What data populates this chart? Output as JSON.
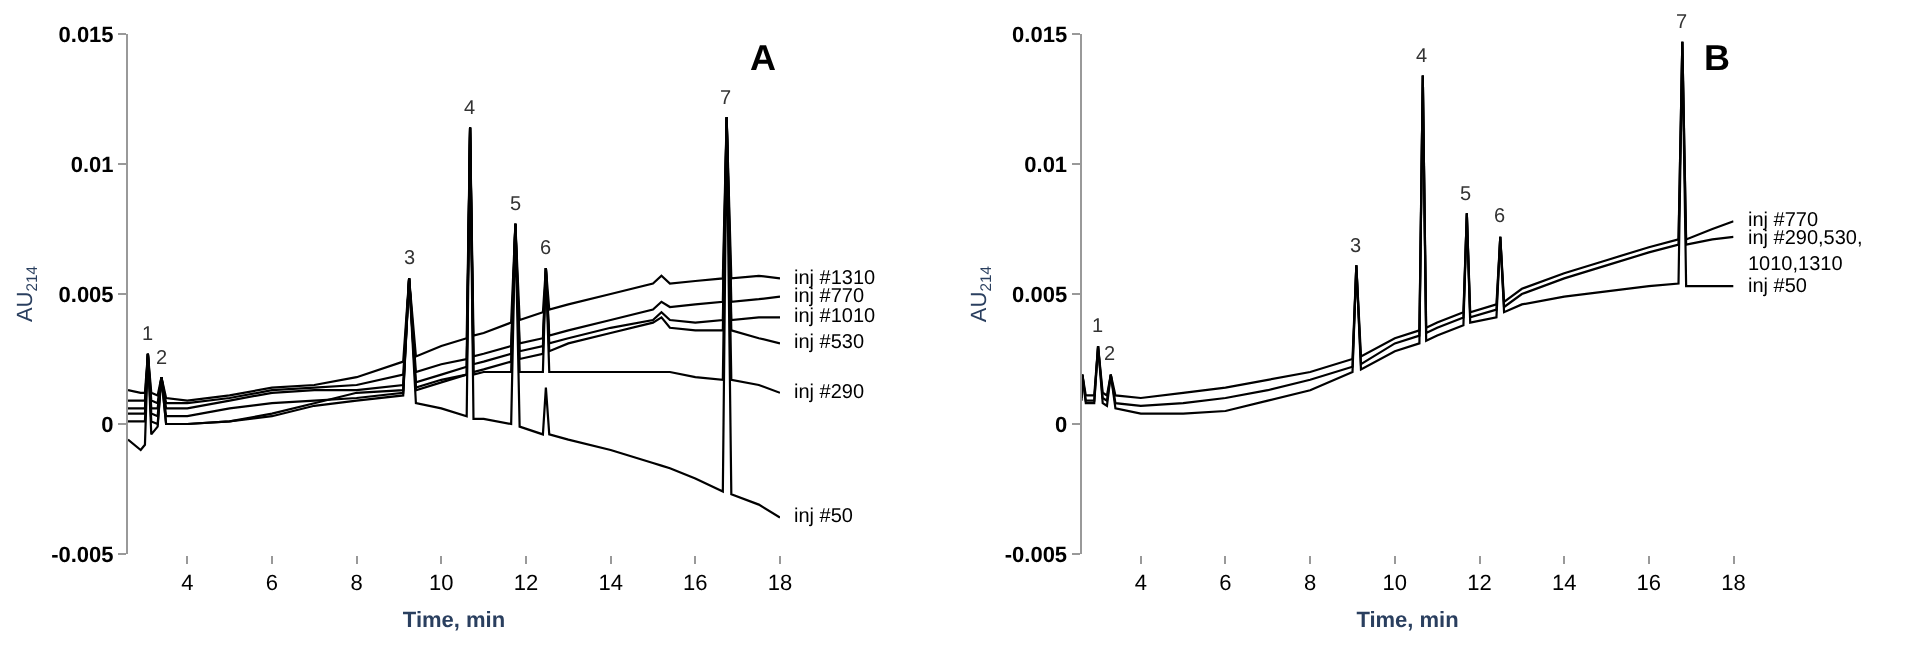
{
  "chart_data": [
    {
      "type": "line",
      "title": "A",
      "xlabel": "Time, min",
      "ylabel": "AU$_{214}$",
      "xlim": [
        2.6,
        18
      ],
      "ylim": [
        -0.005,
        0.015
      ],
      "xticks": [
        4,
        6,
        8,
        10,
        12,
        14,
        16,
        18
      ],
      "yticks": [
        -0.005,
        0,
        0.005,
        0.01,
        0.015
      ],
      "x": [
        2.6,
        2.9,
        3.0,
        3.07,
        3.15,
        3.3,
        3.39,
        3.5,
        4,
        5,
        6,
        7,
        8,
        9.1,
        9.24,
        9.4,
        10,
        10.6,
        10.68,
        10.76,
        11,
        11.65,
        11.75,
        11.85,
        12.4,
        12.47,
        12.55,
        13,
        14,
        15,
        15.2,
        15.4,
        16,
        16.65,
        16.74,
        16.85,
        17.5,
        18
      ],
      "series": [
        {
          "name": "inj #1310",
          "color": "#000000",
          "values": [
            0.0013,
            0.0012,
            0.0012,
            0.0027,
            0.0012,
            0.0011,
            0.0018,
            0.001,
            0.0009,
            0.0011,
            0.0014,
            0.0015,
            0.0018,
            0.0024,
            0.0056,
            0.0026,
            0.003,
            0.0033,
            0.0114,
            0.0034,
            0.0035,
            0.0039,
            0.0077,
            0.004,
            0.0043,
            0.006,
            0.0044,
            0.0046,
            0.005,
            0.0054,
            0.0057,
            0.0054,
            0.0055,
            0.0056,
            0.0118,
            0.0056,
            0.0057,
            0.0056
          ]
        },
        {
          "name": "inj #770",
          "color": "#000000",
          "values": [
            0.0009,
            0.0009,
            0.0009,
            0.0027,
            0.0009,
            0.0008,
            0.0018,
            0.0008,
            0.0008,
            0.001,
            0.0013,
            0.0014,
            0.0015,
            0.0019,
            0.0056,
            0.002,
            0.0023,
            0.0025,
            0.0114,
            0.0026,
            0.0027,
            0.003,
            0.0077,
            0.0031,
            0.0033,
            0.006,
            0.0034,
            0.0036,
            0.004,
            0.0044,
            0.0047,
            0.0045,
            0.0046,
            0.0047,
            0.0118,
            0.0047,
            0.0048,
            0.0049
          ]
        },
        {
          "name": "inj #1010",
          "color": "#000000",
          "values": [
            0.0006,
            0.0006,
            0.0006,
            0.0027,
            0.0006,
            0.0006,
            0.0018,
            0.0006,
            0.0006,
            0.0009,
            0.0012,
            0.0013,
            0.0013,
            0.0015,
            0.0056,
            0.0016,
            0.0019,
            0.0022,
            0.0114,
            0.0023,
            0.0024,
            0.0027,
            0.0077,
            0.0028,
            0.003,
            0.006,
            0.0031,
            0.0033,
            0.0037,
            0.004,
            0.0043,
            0.004,
            0.0039,
            0.004,
            0.0118,
            0.004,
            0.0041,
            0.0041
          ]
        },
        {
          "name": "inj #530",
          "color": "#000000",
          "values": [
            0.0004,
            0.0004,
            0.0004,
            0.0027,
            0.0004,
            0.0003,
            0.0018,
            0.0003,
            0.0003,
            0.0006,
            0.0008,
            0.0009,
            0.001,
            0.0012,
            0.0056,
            0.0013,
            0.0016,
            0.0019,
            0.0114,
            0.002,
            0.0021,
            0.0024,
            0.0077,
            0.0025,
            0.0027,
            0.006,
            0.0028,
            0.0031,
            0.0035,
            0.0039,
            0.0041,
            0.0037,
            0.0036,
            0.0036,
            0.0118,
            0.0036,
            0.0033,
            0.0031
          ]
        },
        {
          "name": "inj #290",
          "color": "#000000",
          "values": [
            0.0001,
            0.0001,
            0.0001,
            0.0027,
            0.0001,
            0.0,
            0.0018,
            0.0,
            0.0,
            0.0001,
            0.0004,
            0.0008,
            0.0012,
            0.0013,
            0.0056,
            0.0014,
            0.0017,
            0.0019,
            0.0114,
            0.0019,
            0.002,
            0.002,
            0.0077,
            0.002,
            0.002,
            0.006,
            0.002,
            0.002,
            0.002,
            0.002,
            0.002,
            0.002,
            0.0018,
            0.0017,
            0.0118,
            0.0017,
            0.0015,
            0.0012
          ]
        },
        {
          "name": "inj #50",
          "color": "#000000",
          "values": [
            -0.0006,
            -0.001,
            -0.0008,
            0.0027,
            -0.0004,
            -0.0001,
            0.0018,
            0.0,
            0.0,
            0.0001,
            0.0003,
            0.0007,
            0.0009,
            0.0011,
            0.0056,
            0.0008,
            0.0006,
            0.0003,
            0.0114,
            0.0002,
            0.0002,
            0.0,
            0.0077,
            -0.0001,
            -0.0004,
            0.0014,
            -0.0004,
            -0.0006,
            -0.001,
            -0.0015,
            -0.0016,
            -0.0017,
            -0.0021,
            -0.0026,
            0.0118,
            -0.0027,
            -0.0031,
            -0.0036
          ]
        }
      ],
      "annotations": [
        {
          "text": "1",
          "x": 3.07,
          "y": 0.0027
        },
        {
          "text": "2",
          "x": 3.39,
          "y": 0.0018
        },
        {
          "text": "3",
          "x": 9.24,
          "y": 0.0056
        },
        {
          "text": "4",
          "x": 10.68,
          "y": 0.0114
        },
        {
          "text": "5",
          "x": 11.75,
          "y": 0.0077
        },
        {
          "text": "6",
          "x": 12.47,
          "y": 0.006
        },
        {
          "text": "7",
          "x": 16.74,
          "y": 0.0118
        }
      ]
    },
    {
      "type": "line",
      "title": "B",
      "xlabel": "Time, min",
      "ylabel": "AU$_{214}$",
      "xlim": [
        2.6,
        18
      ],
      "ylim": [
        -0.005,
        0.015
      ],
      "xticks": [
        4,
        6,
        8,
        10,
        12,
        14,
        16,
        18
      ],
      "yticks": [
        -0.005,
        0,
        0.005,
        0.01,
        0.015
      ],
      "x": [
        2.6,
        2.62,
        2.7,
        2.9,
        2.99,
        3.1,
        3.2,
        3.29,
        3.4,
        4,
        5,
        6,
        7,
        8,
        9.0,
        9.09,
        9.2,
        10,
        10.58,
        10.66,
        10.74,
        11,
        11.62,
        11.7,
        11.78,
        12.4,
        12.49,
        12.58,
        13,
        14,
        15,
        16,
        16.7,
        16.79,
        16.88,
        17.5,
        18
      ],
      "series": [
        {
          "name": "inj #770",
          "color": "#000000",
          "values": [
            0.0012,
            0.0019,
            0.0011,
            0.0011,
            0.003,
            0.0012,
            0.0011,
            0.0019,
            0.0011,
            0.001,
            0.0012,
            0.0014,
            0.0017,
            0.002,
            0.0025,
            0.0061,
            0.0026,
            0.0033,
            0.0036,
            0.0134,
            0.0037,
            0.0039,
            0.0043,
            0.0081,
            0.0043,
            0.0046,
            0.0072,
            0.0047,
            0.0052,
            0.0058,
            0.0063,
            0.0068,
            0.0071,
            0.0147,
            0.0071,
            0.0075,
            0.0078
          ]
        },
        {
          "name": "inj #290,530,\n1010,1310",
          "color": "#000000",
          "values": [
            0.001,
            0.0019,
            0.0009,
            0.0009,
            0.003,
            0.001,
            0.0009,
            0.0019,
            0.0008,
            0.0007,
            0.0008,
            0.001,
            0.0013,
            0.0017,
            0.0022,
            0.0061,
            0.0023,
            0.0031,
            0.0034,
            0.0134,
            0.0035,
            0.0037,
            0.0041,
            0.0081,
            0.0041,
            0.0044,
            0.0072,
            0.0045,
            0.005,
            0.0056,
            0.0061,
            0.0066,
            0.0069,
            0.0147,
            0.0069,
            0.0071,
            0.0072
          ]
        },
        {
          "name": "inj #50",
          "color": "#000000",
          "values": [
            0.0009,
            0.0019,
            0.0008,
            0.0008,
            0.003,
            0.0008,
            0.0007,
            0.0019,
            0.0006,
            0.0004,
            0.0004,
            0.0005,
            0.0009,
            0.0013,
            0.002,
            0.0061,
            0.0021,
            0.0028,
            0.0031,
            0.0134,
            0.0032,
            0.0034,
            0.0038,
            0.0081,
            0.0039,
            0.0041,
            0.0072,
            0.0043,
            0.0046,
            0.0049,
            0.0051,
            0.0053,
            0.0054,
            0.0147,
            0.0053,
            0.0053,
            0.0053
          ]
        }
      ],
      "annotations": [
        {
          "text": "1",
          "x": 2.99,
          "y": 0.003
        },
        {
          "text": "2",
          "x": 3.29,
          "y": 0.0019
        },
        {
          "text": "3",
          "x": 9.09,
          "y": 0.0061
        },
        {
          "text": "4",
          "x": 10.66,
          "y": 0.0134
        },
        {
          "text": "5",
          "x": 11.7,
          "y": 0.0081
        },
        {
          "text": "6",
          "x": 12.49,
          "y": 0.0072
        },
        {
          "text": "7",
          "x": 16.79,
          "y": 0.0147
        }
      ]
    }
  ]
}
